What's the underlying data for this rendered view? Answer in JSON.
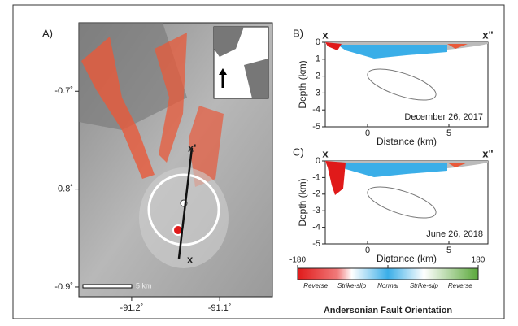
{
  "map": {
    "label": "A)",
    "ylim": [
      -0.63,
      -0.91
    ],
    "yticks": [
      {
        "value": -0.7,
        "label": "-0.7˚"
      },
      {
        "value": -0.8,
        "label": "-0.8˚"
      },
      {
        "value": -0.9,
        "label": "-0.9˚"
      }
    ],
    "xlim": [
      -91.26,
      -91.04
    ],
    "xticks": [
      {
        "value": -91.2,
        "label": "-91.2˚"
      },
      {
        "value": -91.1,
        "label": "-91.1˚"
      }
    ],
    "scale_bar": "5 km",
    "profile_start": "x",
    "profile_end": "x'"
  },
  "sections": [
    {
      "label": "B)",
      "date": "December 26, 2017",
      "ylabel": "Depth (km)",
      "xlabel": "Distance (km)",
      "ylim": [
        -5,
        0
      ],
      "yticks": [
        0,
        -1,
        -2,
        -3,
        -4,
        -5
      ],
      "xlim": [
        -2.6,
        7.4
      ],
      "xticks": [
        0,
        5
      ],
      "start": "x",
      "end": "x\""
    },
    {
      "label": "C)",
      "date": "June 26, 2018",
      "ylabel": "Depth (km)",
      "xlabel": "Distance (km)",
      "ylim": [
        -5,
        0
      ],
      "yticks": [
        0,
        -1,
        -2,
        -3,
        -4,
        -5
      ],
      "xlim": [
        -2.6,
        7.4
      ],
      "xticks": [
        0,
        5
      ],
      "start": "x",
      "end": "x\""
    }
  ],
  "colorbar": {
    "title": "Andersonian Fault Orientation",
    "lim": [
      -180,
      180
    ],
    "ticks": [
      -180,
      0,
      180
    ],
    "classes": [
      "Reverse",
      "Strike-slip",
      "Normal",
      "Strike-slip",
      "Reverse"
    ]
  }
}
